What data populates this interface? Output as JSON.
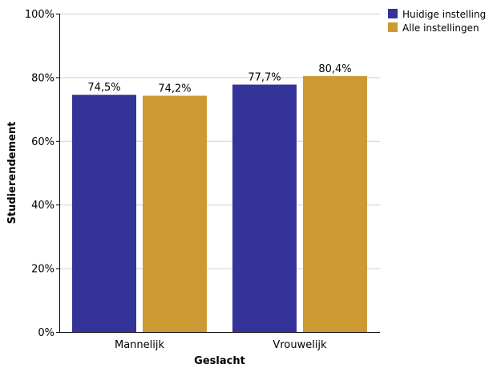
{
  "chart_data": {
    "type": "bar",
    "categories": [
      "Mannelijk",
      "Vrouwelijk"
    ],
    "series": [
      {
        "name": "Huidige instelling",
        "color": "#333399",
        "values": [
          74.5,
          77.7
        ],
        "labels": [
          "74,5%",
          "77,7%"
        ]
      },
      {
        "name": "Alle instellingen",
        "color": "#CC9933",
        "values": [
          74.2,
          80.4
        ],
        "labels": [
          "74,2%",
          "80,4%"
        ]
      }
    ],
    "title": "",
    "xlabel": "Geslacht",
    "ylabel": "Studierendement",
    "ylim": [
      0,
      100
    ],
    "yticks": [
      0,
      20,
      40,
      60,
      80,
      100
    ],
    "ytick_labels": [
      "0%",
      "20%",
      "40%",
      "60%",
      "80%",
      "100%"
    ],
    "grid": true,
    "legend_position": "top-right"
  }
}
